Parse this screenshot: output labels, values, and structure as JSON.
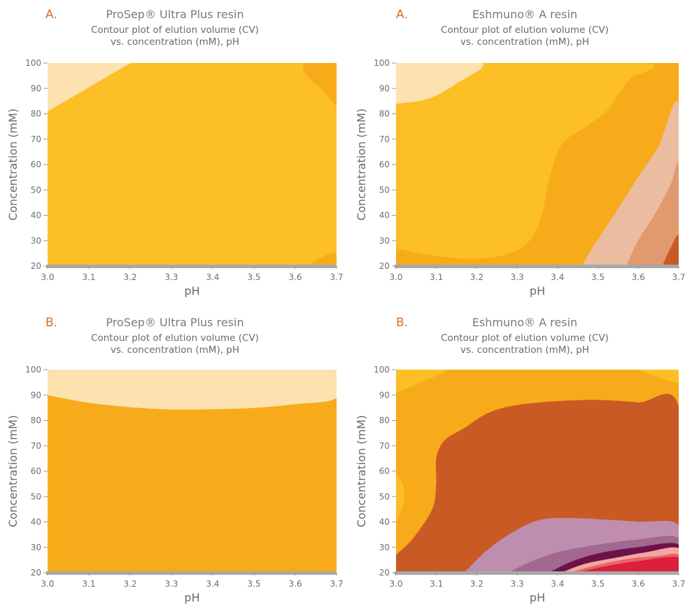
{
  "chart_data": [
    {
      "type": "contour",
      "panel_letter": "A.",
      "title": "ProSep® Ultra Plus resin",
      "subtitle_line1": "Contour plot of elution volume (CV)",
      "subtitle_line2": "vs. concentration (mM), pH",
      "xlabel": "pH",
      "ylabel": "Concentration (mM)",
      "xlim": [
        3.0,
        3.7
      ],
      "ylim": [
        20,
        100
      ],
      "xticks": [
        "3.0",
        "3.1",
        "3.2",
        "3.3",
        "3.4",
        "3.5",
        "3.6",
        "3.7"
      ],
      "yticks": [
        "20",
        "30",
        "40",
        "50",
        "60",
        "70",
        "80",
        "90",
        "100"
      ],
      "background_color": "#FCBF26",
      "regions": [
        {
          "color": "#FDE2B0",
          "points": [
            [
              3.0,
              81
            ],
            [
              3.0,
              100
            ],
            [
              3.2,
              100
            ]
          ]
        },
        {
          "color": "#F8AB1A",
          "points": [
            [
              3.62,
              100
            ],
            [
              3.7,
              100
            ],
            [
              3.7,
              84
            ],
            [
              3.67,
              89
            ],
            [
              3.64,
              93
            ],
            [
              3.62,
              97
            ]
          ]
        },
        {
          "color": "#F8AB1A",
          "points": [
            [
              3.63,
              20
            ],
            [
              3.7,
              20
            ],
            [
              3.7,
              25
            ],
            [
              3.67,
              24
            ]
          ]
        }
      ]
    },
    {
      "type": "contour",
      "panel_letter": "A.",
      "title": "Eshmuno® A resin",
      "subtitle_line1": "Contour plot of elution volume (CV)",
      "subtitle_line2": "vs. concentration (mM), pH",
      "xlabel": "pH",
      "ylabel": "Concentration (mM)",
      "xlim": [
        3.0,
        3.7
      ],
      "ylim": [
        20,
        100
      ],
      "xticks": [
        "3.0",
        "3.1",
        "3.2",
        "3.3",
        "3.4",
        "3.5",
        "3.6",
        "3.7"
      ],
      "yticks": [
        "20",
        "30",
        "40",
        "50",
        "60",
        "70",
        "80",
        "90",
        "100"
      ],
      "background_color": "#F8AB1A",
      "regions": [
        {
          "color": "#FCBF26",
          "points": [
            [
              3.0,
              27
            ],
            [
              3.1,
              24
            ],
            [
              3.2,
              23
            ],
            [
              3.28,
              25
            ],
            [
              3.33,
              30
            ],
            [
              3.36,
              40
            ],
            [
              3.38,
              55
            ],
            [
              3.41,
              68
            ],
            [
              3.47,
              75
            ],
            [
              3.52,
              81
            ],
            [
              3.55,
              88
            ],
            [
              3.58,
              94
            ],
            [
              3.6,
              100
            ],
            [
              3.0,
              100
            ]
          ]
        },
        {
          "color": "#FDE2B0",
          "points": [
            [
              3.0,
              84
            ],
            [
              3.08,
              86
            ],
            [
              3.15,
              92
            ],
            [
              3.21,
              100
            ],
            [
              3.0,
              100
            ]
          ]
        },
        {
          "color": "#EBBC9F",
          "points": [
            [
              3.46,
              20
            ],
            [
              3.49,
              28
            ],
            [
              3.54,
              40
            ],
            [
              3.6,
              55
            ],
            [
              3.65,
              67
            ],
            [
              3.7,
              83
            ],
            [
              3.7,
              20
            ]
          ]
        },
        {
          "color": "#E09A6E",
          "points": [
            [
              3.57,
              20
            ],
            [
              3.6,
              30
            ],
            [
              3.64,
              40
            ],
            [
              3.68,
              52
            ],
            [
              3.7,
              59
            ],
            [
              3.7,
              20
            ]
          ]
        },
        {
          "color": "#C95A24",
          "points": [
            [
              3.66,
              20
            ],
            [
              3.68,
              27
            ],
            [
              3.7,
              32
            ],
            [
              3.7,
              20
            ]
          ]
        }
      ]
    },
    {
      "type": "contour",
      "panel_letter": "B.",
      "title": "ProSep® Ultra Plus resin",
      "subtitle_line1": "Contour plot of elution volume (CV)",
      "subtitle_line2": "vs. concentration (mM), pH",
      "xlabel": "pH",
      "ylabel": "Concentration (mM)",
      "xlim": [
        3.0,
        3.7
      ],
      "ylim": [
        20,
        100
      ],
      "xticks": [
        "3.0",
        "3.1",
        "3.2",
        "3.3",
        "3.4",
        "3.5",
        "3.6",
        "3.7"
      ],
      "yticks": [
        "20",
        "30",
        "40",
        "50",
        "60",
        "70",
        "80",
        "90",
        "100"
      ],
      "background_color": "#F8AB1A",
      "regions": [
        {
          "color": "#FDE2B0",
          "points": [
            [
              3.0,
              90
            ],
            [
              3.1,
              87
            ],
            [
              3.2,
              85.3
            ],
            [
              3.3,
              84.4
            ],
            [
              3.4,
              84.5
            ],
            [
              3.5,
              85
            ],
            [
              3.6,
              86.5
            ],
            [
              3.7,
              89
            ],
            [
              3.7,
              100
            ],
            [
              3.0,
              100
            ]
          ]
        }
      ]
    },
    {
      "type": "contour",
      "panel_letter": "B.",
      "title": "Eshmuno® A resin",
      "subtitle_line1": "Contour plot of elution volume (CV)",
      "subtitle_line2": "vs. concentration (mM), pH",
      "xlabel": "pH",
      "ylabel": "Concentration (mM)",
      "xlim": [
        3.0,
        3.7
      ],
      "ylim": [
        20,
        100
      ],
      "xticks": [
        "3.0",
        "3.1",
        "3.2",
        "3.3",
        "3.4",
        "3.5",
        "3.6",
        "3.7"
      ],
      "yticks": [
        "20",
        "30",
        "40",
        "50",
        "60",
        "70",
        "80",
        "90",
        "100"
      ],
      "background_color": "#F8AB1A",
      "regions": [
        {
          "color": "#FCBF26",
          "points": [
            [
              3.0,
              91
            ],
            [
              3.06,
              95
            ],
            [
              3.12,
              100
            ],
            [
              3.0,
              100
            ]
          ]
        },
        {
          "color": "#FCBF26",
          "points": [
            [
              3.6,
              100
            ],
            [
              3.7,
              100
            ],
            [
              3.7,
              95
            ],
            [
              3.65,
              97
            ]
          ]
        },
        {
          "color": "#FCBF26",
          "points": [
            [
              3.0,
              40
            ],
            [
              3.015,
              46
            ],
            [
              3.02,
              52
            ],
            [
              3.01,
              57
            ],
            [
              3.0,
              58
            ]
          ]
        },
        {
          "color": "#C95A24",
          "points": [
            [
              3.0,
              27
            ],
            [
              3.04,
              33
            ],
            [
              3.09,
              45
            ],
            [
              3.1,
              55
            ],
            [
              3.1,
              65
            ],
            [
              3.12,
              72
            ],
            [
              3.17,
              77
            ],
            [
              3.23,
              83
            ],
            [
              3.3,
              86
            ],
            [
              3.4,
              87.5
            ],
            [
              3.5,
              88
            ],
            [
              3.6,
              87
            ],
            [
              3.7,
              85
            ],
            [
              3.7,
              20
            ],
            [
              3.0,
              20
            ]
          ]
        },
        {
          "color": "#BF8EAE",
          "points": [
            [
              3.17,
              20
            ],
            [
              3.22,
              28
            ],
            [
              3.28,
              35
            ],
            [
              3.35,
              40.5
            ],
            [
              3.42,
              41.5
            ],
            [
              3.5,
              41
            ],
            [
              3.6,
              40
            ],
            [
              3.7,
              38.5
            ],
            [
              3.7,
              20
            ]
          ]
        },
        {
          "color": "#A26890",
          "points": [
            [
              3.28,
              20
            ],
            [
              3.33,
              24
            ],
            [
              3.4,
              28
            ],
            [
              3.5,
              31
            ],
            [
              3.6,
              33
            ],
            [
              3.7,
              33.5
            ],
            [
              3.7,
              20
            ]
          ]
        },
        {
          "color": "#6E1149",
          "points": [
            [
              3.38,
              20
            ],
            [
              3.43,
              24
            ],
            [
              3.5,
              27.5
            ],
            [
              3.6,
              30
            ],
            [
              3.7,
              31
            ],
            [
              3.7,
              20
            ]
          ]
        },
        {
          "color": "#F2A7A0",
          "points": [
            [
              3.41,
              20
            ],
            [
              3.47,
              23.5
            ],
            [
              3.55,
              26
            ],
            [
              3.62,
              28
            ],
            [
              3.7,
              29.5
            ],
            [
              3.7,
              20
            ]
          ]
        },
        {
          "color": "#E7646B",
          "points": [
            [
              3.43,
              20
            ],
            [
              3.5,
              23
            ],
            [
              3.58,
              25.5
            ],
            [
              3.65,
              26.5
            ],
            [
              3.7,
              27
            ],
            [
              3.7,
              20
            ]
          ]
        },
        {
          "color": "#DC1F3B",
          "points": [
            [
              3.45,
              20
            ],
            [
              3.52,
              22.5
            ],
            [
              3.6,
              24.5
            ],
            [
              3.7,
              26
            ],
            [
              3.7,
              20
            ]
          ]
        }
      ]
    }
  ],
  "colors": {
    "panel_letter": "#DF6B1F",
    "axis_baseline": "#A8A8A8",
    "tick_text": "#6E6E6E"
  }
}
